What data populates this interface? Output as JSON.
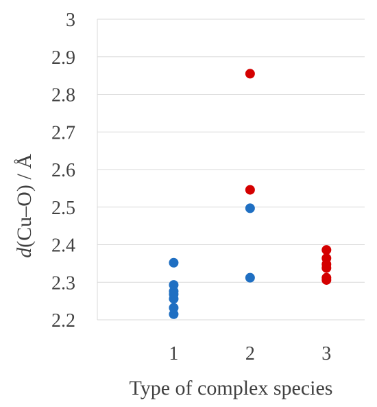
{
  "chart_data": {
    "type": "scatter",
    "title": "",
    "xlabel": "Type of complex species",
    "ylabel_prefix": "d",
    "ylabel_rest": "(Cu–O) / Å",
    "ylim": [
      2.2,
      3.0
    ],
    "yticks": [
      "2.2",
      "2.3",
      "2.4",
      "2.5",
      "2.6",
      "2.7",
      "2.8",
      "2.9",
      "3"
    ],
    "xlim": [
      0,
      3.5
    ],
    "xticks": [
      "1",
      "2",
      "3"
    ],
    "grid": "horizontal",
    "legend": "none",
    "colors": {
      "blue": "#1f6fc2",
      "red": "#d40000"
    },
    "series": [
      {
        "color": "blue",
        "points": [
          {
            "x": 1,
            "y": 2.352
          },
          {
            "x": 1,
            "y": 2.293
          },
          {
            "x": 1,
            "y": 2.276
          },
          {
            "x": 1,
            "y": 2.268
          },
          {
            "x": 1,
            "y": 2.256
          },
          {
            "x": 1,
            "y": 2.232
          },
          {
            "x": 1,
            "y": 2.215
          },
          {
            "x": 2,
            "y": 2.497
          },
          {
            "x": 2,
            "y": 2.312
          }
        ]
      },
      {
        "color": "red",
        "points": [
          {
            "x": 2,
            "y": 2.855
          },
          {
            "x": 2,
            "y": 2.546
          },
          {
            "x": 3,
            "y": 2.386
          },
          {
            "x": 3,
            "y": 2.364
          },
          {
            "x": 3,
            "y": 2.348
          },
          {
            "x": 3,
            "y": 2.338
          },
          {
            "x": 3,
            "y": 2.312
          },
          {
            "x": 3,
            "y": 2.306
          }
        ]
      }
    ]
  }
}
